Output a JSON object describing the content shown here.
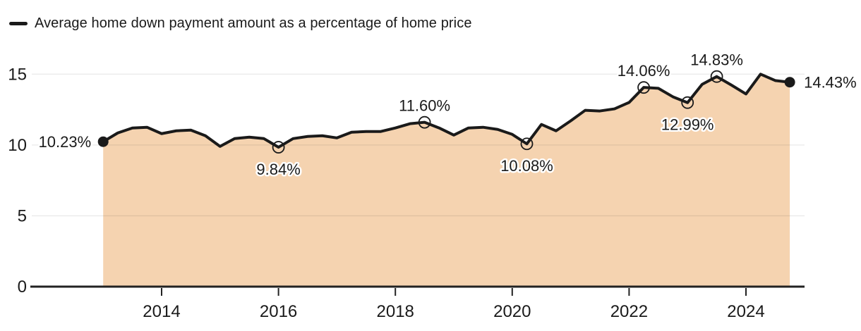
{
  "legend": {
    "label": "Average home down payment amount as a percentage of home price"
  },
  "chart_data": {
    "type": "area",
    "title": "",
    "series_name": "Average home down payment amount as a percentage of home price",
    "xlabel": "",
    "ylabel": "",
    "x_unit": "year (quarterly)",
    "y_unit": "percent",
    "xlim": [
      2012.75,
      2025.0
    ],
    "ylim": [
      0,
      15.5
    ],
    "x_ticks": [
      "2014",
      "2016",
      "2018",
      "2020",
      "2022",
      "2024"
    ],
    "y_ticks": [
      "0",
      "5",
      "10",
      "15"
    ],
    "grid": "horizontal",
    "legend_position": "top-left",
    "x": [
      2013.0,
      2013.25,
      2013.5,
      2013.75,
      2014.0,
      2014.25,
      2014.5,
      2014.75,
      2015.0,
      2015.25,
      2015.5,
      2015.75,
      2016.0,
      2016.25,
      2016.5,
      2016.75,
      2017.0,
      2017.25,
      2017.5,
      2017.75,
      2018.0,
      2018.25,
      2018.5,
      2018.75,
      2019.0,
      2019.25,
      2019.5,
      2019.75,
      2020.0,
      2020.25,
      2020.5,
      2020.75,
      2021.0,
      2021.25,
      2021.5,
      2021.75,
      2022.0,
      2022.25,
      2022.5,
      2022.75,
      2023.0,
      2023.25,
      2023.5,
      2023.75,
      2024.0,
      2024.25,
      2024.5,
      2024.75
    ],
    "values": [
      10.23,
      10.85,
      11.2,
      11.25,
      10.8,
      11.0,
      11.05,
      10.65,
      9.9,
      10.45,
      10.55,
      10.45,
      9.84,
      10.45,
      10.6,
      10.65,
      10.5,
      10.9,
      10.95,
      10.95,
      11.2,
      11.5,
      11.6,
      11.2,
      10.7,
      11.2,
      11.25,
      11.1,
      10.75,
      10.08,
      11.45,
      11.0,
      11.7,
      12.45,
      12.4,
      12.55,
      13.0,
      14.06,
      14.0,
      13.4,
      12.99,
      14.28,
      14.83,
      14.23,
      13.6,
      15.0,
      14.55,
      14.43
    ],
    "annotations": [
      {
        "x": 2013.0,
        "value": 10.23,
        "label": "10.23%",
        "marker": "filled",
        "position": "left"
      },
      {
        "x": 2016.0,
        "value": 9.84,
        "label": "9.84%",
        "marker": "open",
        "position": "below"
      },
      {
        "x": 2018.5,
        "value": 11.6,
        "label": "11.60%",
        "marker": "open",
        "position": "above"
      },
      {
        "x": 2020.25,
        "value": 10.08,
        "label": "10.08%",
        "marker": "open",
        "position": "below"
      },
      {
        "x": 2022.25,
        "value": 14.06,
        "label": "14.06%",
        "marker": "open",
        "position": "above"
      },
      {
        "x": 2023.0,
        "value": 12.99,
        "label": "12.99%",
        "marker": "open",
        "position": "below"
      },
      {
        "x": 2023.5,
        "value": 14.83,
        "label": "14.83%",
        "marker": "open",
        "position": "above"
      },
      {
        "x": 2024.75,
        "value": 14.43,
        "label": "14.43%",
        "marker": "filled",
        "position": "right"
      }
    ],
    "colors": {
      "line": "#1a1a1a",
      "area_fill": "#f5d3b0",
      "grid": "rgba(20,20,20,0.09)",
      "axis": "#222222",
      "text": "#1a1a1a"
    }
  }
}
